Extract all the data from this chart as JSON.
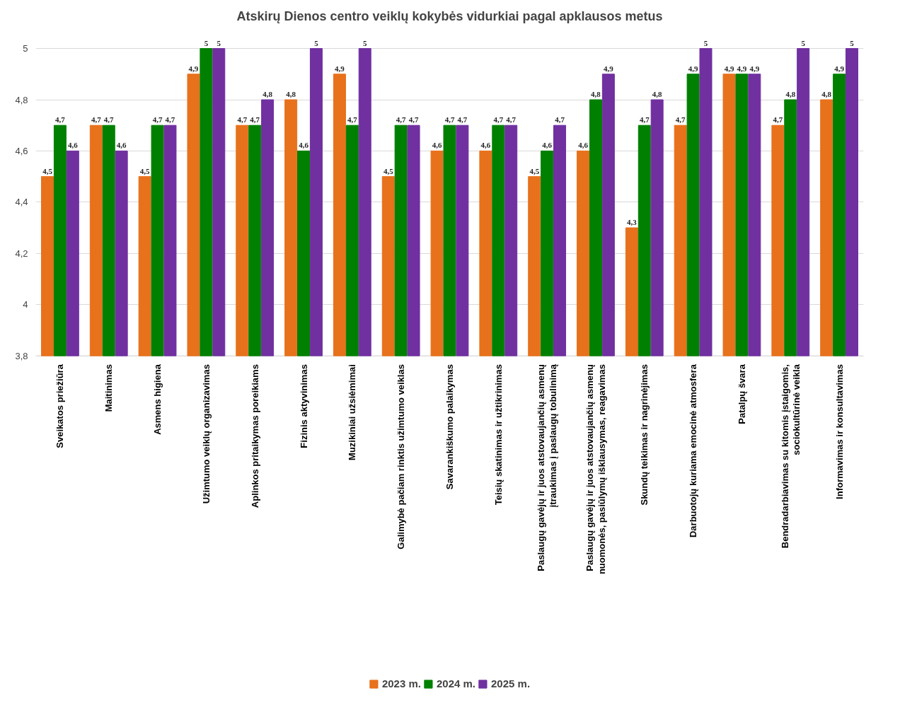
{
  "chart_data": {
    "type": "bar",
    "title": "Atskirų Dienos centro veiklų kokybės vidurkiai pagal apklausos metus",
    "categories": [
      "Sveikatos priežiūra",
      "Maitinimas",
      "Asmens higiena",
      "Užimtumo veiklų organizavimas",
      "Aplinkos pritaikymas poreikiams",
      "Fizinis aktyvinimas",
      "Muzikiniai užsiėmimai",
      "Galimybė pačiam rinktis užimtumo veiklas",
      "Savarankiškumo palaikymas",
      "Teisių skatinimas ir užtikrinimas",
      "Paslaugų gavėjų ir juos atstovaujančių asmenų įtraukimas į paslaugų tobulinimą",
      "Paslaugų gavėjų ir juos atstovaujančių asmenų nuomonės, pasiūlymų išklausymas, reagavimas",
      "Skundų teikimas ir nagrinėjimas",
      "Darbuotojų kuriama emocinė atmosfera",
      "Patalpų švara",
      "Bendradarbiavimas su kitomis įstaigomis, sociokultūrinė veikla",
      "Informavimas ir konsultavimas"
    ],
    "series": [
      {
        "name": "2023 m.",
        "color": "#e8711c",
        "values": [
          4.5,
          4.7,
          4.5,
          4.9,
          4.7,
          4.8,
          4.9,
          4.5,
          4.6,
          4.6,
          4.5,
          4.6,
          4.3,
          4.7,
          4.9,
          4.7,
          4.8
        ],
        "value_labels": [
          "4,5",
          "4,7",
          "4,5",
          "4,9",
          "4,7",
          "4,8",
          "4,9",
          "4,5",
          "4,6",
          "4,6",
          "4,5",
          "4,6",
          "4,3",
          "4,7",
          "4,9",
          "4,7",
          "4,8"
        ]
      },
      {
        "name": "2024 m.",
        "color": "#008000",
        "values": [
          4.7,
          4.7,
          4.7,
          5,
          4.7,
          4.6,
          4.7,
          4.7,
          4.7,
          4.7,
          4.6,
          4.8,
          4.7,
          4.9,
          4.9,
          4.8,
          4.9
        ],
        "value_labels": [
          "4,7",
          "4,7",
          "4,7",
          "5",
          "4,7",
          "4,6",
          "4,7",
          "4,7",
          "4,7",
          "4,7",
          "4,6",
          "4,8",
          "4,7",
          "4,9",
          "4,9",
          "4,8",
          "4,9"
        ]
      },
      {
        "name": "2025 m.",
        "color": "#7030a0",
        "values": [
          4.6,
          4.6,
          4.7,
          5,
          4.8,
          5,
          5,
          4.7,
          4.7,
          4.7,
          4.7,
          4.9,
          4.8,
          5,
          4.9,
          5,
          5
        ],
        "value_labels": [
          "4,6",
          "4,6",
          "4,7",
          "5",
          "4,8",
          "5",
          "5",
          "4,7",
          "4,7",
          "4,7",
          "4,7",
          "4,9",
          "4,8",
          "5",
          "4,9",
          "5",
          "5"
        ]
      }
    ],
    "ylim": [
      3.8,
      5
    ],
    "yticks": [
      {
        "value": 3.8,
        "label": "3,8"
      },
      {
        "value": 4,
        "label": "4"
      },
      {
        "value": 4.2,
        "label": "4,2"
      },
      {
        "value": 4.4,
        "label": "4,4"
      },
      {
        "value": 4.6,
        "label": "4,6"
      },
      {
        "value": 4.8,
        "label": "4,8"
      },
      {
        "value": 5,
        "label": "5"
      }
    ],
    "grid": "y",
    "legend": "bottom"
  }
}
